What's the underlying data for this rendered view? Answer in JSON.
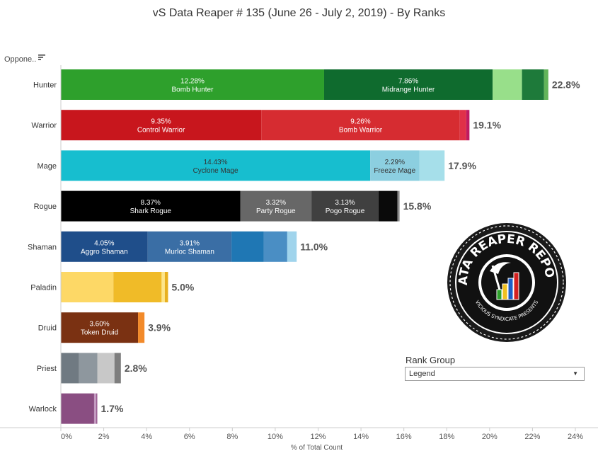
{
  "title": "vS Data Reaper #  135 (June 26 - July 2, 2019) - By Ranks",
  "sort_label": "Oppone..",
  "icons": {
    "sort": "sort-descending-icon",
    "dropdown": "chevron-down-icon",
    "logo": "data-reaper-report-logo"
  },
  "legend": {
    "title": "Rank Group",
    "selected": "Legend"
  },
  "logo": {
    "top_text": "DATA REAPER REPORT",
    "bottom_text": "VICIOUS SYNDICATE PRESENTS",
    "bar_colors": [
      "#2ea02c",
      "#f0c020",
      "#1c5fc8",
      "#d42020"
    ]
  },
  "chart_data": {
    "type": "bar",
    "orientation": "horizontal",
    "stacked": true,
    "title": "vS Data Reaper #  135 (June 26 - July 2, 2019) - By Ranks",
    "xlabel": "% of Total Count",
    "ylabel": "",
    "xlim": [
      0,
      24
    ],
    "xticks": [
      "0%",
      "2%",
      "4%",
      "6%",
      "8%",
      "10%",
      "12%",
      "14%",
      "16%",
      "18%",
      "20%",
      "22%",
      "24%"
    ],
    "gridlines": false,
    "categories": [
      {
        "name": "Hunter",
        "total_label": "22.8%",
        "segments": [
          {
            "value": 12.28,
            "label": "12.28%",
            "archetype": "Bomb Hunter",
            "color": "#2ea02c",
            "text_color": "#ffffff"
          },
          {
            "value": 7.86,
            "label": "7.86%",
            "archetype": "Midrange Hunter",
            "color": "#0f6b2e",
            "text_color": "#ffffff"
          },
          {
            "value": 1.37,
            "color": "#98df8a"
          },
          {
            "value": 1.03,
            "color": "#1e7a3a"
          },
          {
            "value": 0.2,
            "color": "#62b45a"
          }
        ]
      },
      {
        "name": "Warrior",
        "total_label": "19.1%",
        "segments": [
          {
            "value": 9.35,
            "label": "9.35%",
            "archetype": "Control Warrior",
            "color": "#c8161d",
            "text_color": "#ffffff"
          },
          {
            "value": 9.26,
            "label": "9.26%",
            "archetype": "Bomb Warrior",
            "color": "#d62c31",
            "text_color": "#ffffff"
          },
          {
            "value": 0.3,
            "color": "#e03048"
          },
          {
            "value": 0.15,
            "color": "#c01a60"
          }
        ]
      },
      {
        "name": "Mage",
        "total_label": "17.9%",
        "segments": [
          {
            "value": 14.43,
            "label": "14.43%",
            "archetype": "Cyclone Mage",
            "color": "#17becf",
            "text_color": "#333333"
          },
          {
            "value": 2.29,
            "label": "2.29%",
            "archetype": "Freeze Mage",
            "color": "#8ccfe0",
            "text_color": "#333333"
          },
          {
            "value": 1.18,
            "color": "#a6dfea"
          }
        ]
      },
      {
        "name": "Rogue",
        "total_label": "15.8%",
        "segments": [
          {
            "value": 8.37,
            "label": "8.37%",
            "archetype": "Shark Rogue",
            "color": "#000000",
            "text_color": "#ffffff"
          },
          {
            "value": 3.32,
            "label": "3.32%",
            "archetype": "Party Rogue",
            "color": "#676767",
            "text_color": "#ffffff"
          },
          {
            "value": 3.13,
            "label": "3.13%",
            "archetype": "Pogo Rogue",
            "color": "#404040",
            "text_color": "#ffffff"
          },
          {
            "value": 0.88,
            "color": "#0a0a0a"
          },
          {
            "value": 0.1,
            "color": "#8a8a8a"
          }
        ]
      },
      {
        "name": "Shaman",
        "total_label": "11.0%",
        "segments": [
          {
            "value": 4.05,
            "label": "4.05%",
            "archetype": "Aggro Shaman",
            "color": "#1f4e8a",
            "text_color": "#ffffff"
          },
          {
            "value": 3.91,
            "label": "3.91%",
            "archetype": "Murloc Shaman",
            "color": "#3a6ea5",
            "text_color": "#ffffff"
          },
          {
            "value": 1.5,
            "color": "#1f77b4"
          },
          {
            "value": 1.1,
            "color": "#4a8ec4"
          },
          {
            "value": 0.44,
            "color": "#a0d4ec"
          }
        ]
      },
      {
        "name": "Paladin",
        "total_label": "5.0%",
        "segments": [
          {
            "value": 2.45,
            "color": "#fdd866"
          },
          {
            "value": 2.25,
            "color": "#f0bb28"
          },
          {
            "value": 0.15,
            "color": "#fde58a"
          },
          {
            "value": 0.15,
            "color": "#e8b020"
          }
        ]
      },
      {
        "name": "Druid",
        "total_label": "3.9%",
        "segments": [
          {
            "value": 3.6,
            "label": "3.60%",
            "archetype": "Token Druid",
            "color": "#7a3112",
            "text_color": "#ffffff"
          },
          {
            "value": 0.3,
            "color": "#f28a2a"
          }
        ]
      },
      {
        "name": "Priest",
        "total_label": "2.8%",
        "segments": [
          {
            "value": 0.85,
            "color": "#707a82"
          },
          {
            "value": 0.85,
            "color": "#8e979e"
          },
          {
            "value": 0.8,
            "color": "#c8c8c8"
          },
          {
            "value": 0.3,
            "color": "#7e7e7e"
          }
        ]
      },
      {
        "name": "Warlock",
        "total_label": "1.7%",
        "segments": [
          {
            "value": 1.55,
            "color": "#8a4e82"
          },
          {
            "value": 0.1,
            "color": "#c39ac0"
          },
          {
            "value": 0.05,
            "color": "#9a5e92"
          }
        ]
      }
    ]
  }
}
